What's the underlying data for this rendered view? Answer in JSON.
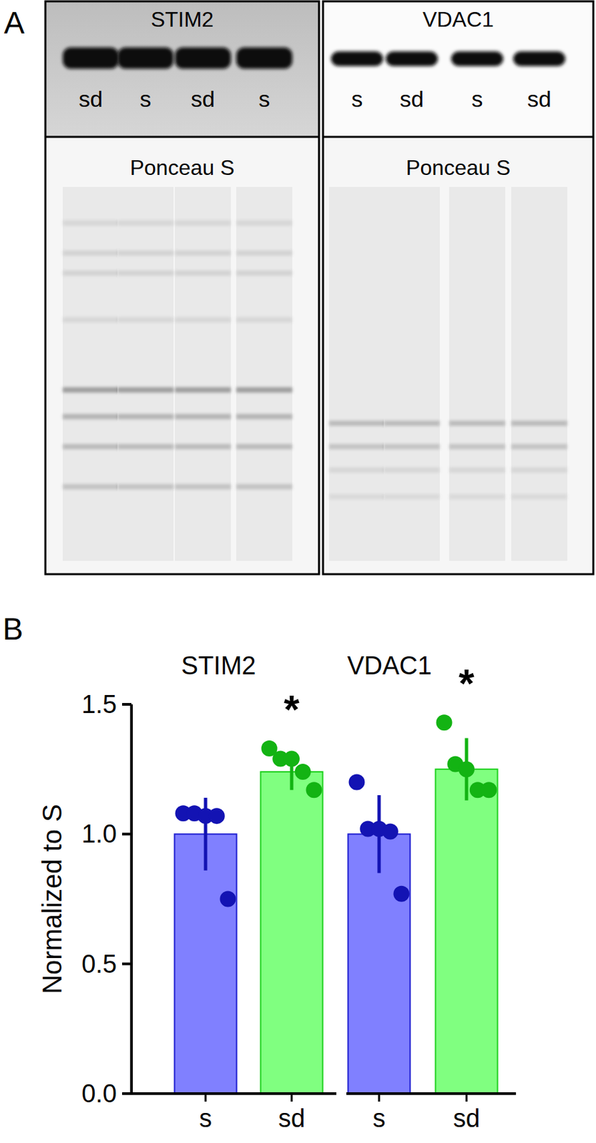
{
  "panel_a": {
    "label": "A",
    "blots": [
      {
        "title": "STIM2",
        "lanes": [
          "sd",
          "s",
          "sd",
          "s"
        ],
        "stain": "Ponceau S"
      },
      {
        "title": "VDAC1",
        "lanes": [
          "s",
          "sd",
          "s",
          "sd"
        ],
        "stain": "Ponceau S"
      }
    ]
  },
  "panel_b": {
    "label": "B"
  },
  "chart_data": [
    {
      "type": "bar",
      "title": "STIM2",
      "categories": [
        "s",
        "sd"
      ],
      "values": [
        1.0,
        1.24
      ],
      "errors": [
        0.14,
        0.07
      ],
      "points": [
        [
          1.08,
          1.08,
          1.07,
          1.07,
          0.75
        ],
        [
          1.33,
          1.29,
          1.29,
          1.24,
          1.17
        ]
      ],
      "significance": [
        null,
        "*"
      ],
      "colors": [
        "#8080ff",
        "#80ff80"
      ],
      "ylabel": "Normalized to S",
      "ylim": [
        0,
        1.5
      ],
      "yticks": [
        {
          "value": 0,
          "label": "0.0"
        },
        {
          "value": 0.5,
          "label": "0.5"
        },
        {
          "value": 1,
          "label": "1.0"
        },
        {
          "value": 1.5,
          "label": "1.5"
        }
      ]
    },
    {
      "type": "bar",
      "title": "VDAC1",
      "categories": [
        "s",
        "sd"
      ],
      "values": [
        1.0,
        1.25
      ],
      "errors": [
        0.15,
        0.12
      ],
      "points": [
        [
          1.2,
          1.02,
          1.02,
          1.01,
          0.77
        ],
        [
          1.43,
          1.27,
          1.25,
          1.17,
          1.17
        ]
      ],
      "significance": [
        null,
        "*"
      ],
      "colors": [
        "#8080ff",
        "#80ff80"
      ],
      "tick_labels": "x",
      "ylim": [
        0,
        1.5
      ]
    }
  ]
}
